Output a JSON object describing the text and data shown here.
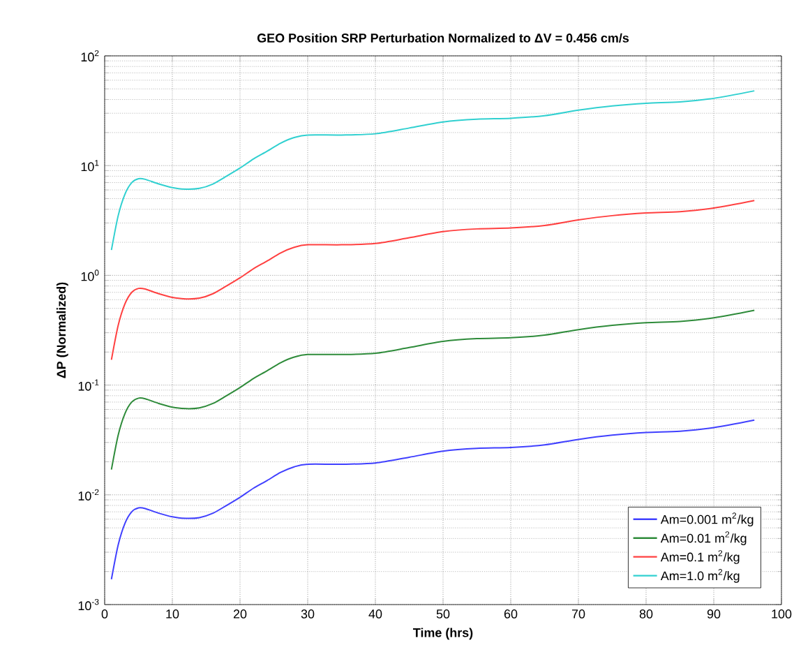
{
  "chart_data": {
    "type": "line",
    "title": "GEO Position SRP Perturbation Normalized to ΔV = 0.456 cm/s",
    "xlabel": "Time (hrs)",
    "ylabel": "ΔP (Normalized)",
    "x": [
      1,
      2,
      3,
      4,
      5,
      6,
      8,
      10,
      12,
      14,
      16,
      18,
      20,
      22,
      24,
      26,
      28,
      30,
      35,
      40,
      45,
      50,
      55,
      60,
      65,
      70,
      75,
      80,
      85,
      90,
      96
    ],
    "series": [
      {
        "name": "Am=0.001 m$^{2}$/kg",
        "color": "#4040ff",
        "values": [
          0.0017,
          0.0035,
          0.0055,
          0.007,
          0.0076,
          0.0075,
          0.0068,
          0.0063,
          0.0061,
          0.0062,
          0.0068,
          0.008,
          0.0095,
          0.0115,
          0.0135,
          0.016,
          0.018,
          0.019,
          0.019,
          0.0195,
          0.022,
          0.025,
          0.0265,
          0.027,
          0.0285,
          0.032,
          0.035,
          0.037,
          0.038,
          0.041,
          0.048
        ]
      },
      {
        "name": "Am=0.01 m$^{2}$/kg",
        "color": "#2e8b3a",
        "values": [
          0.017,
          0.035,
          0.055,
          0.07,
          0.076,
          0.075,
          0.068,
          0.063,
          0.061,
          0.062,
          0.068,
          0.08,
          0.095,
          0.115,
          0.135,
          0.16,
          0.18,
          0.19,
          0.19,
          0.195,
          0.22,
          0.25,
          0.265,
          0.27,
          0.285,
          0.32,
          0.35,
          0.37,
          0.38,
          0.41,
          0.48
        ]
      },
      {
        "name": "Am=0.1 m$^{2}$/kg",
        "color": "#ff4040",
        "values": [
          0.17,
          0.35,
          0.55,
          0.7,
          0.76,
          0.75,
          0.68,
          0.63,
          0.61,
          0.62,
          0.68,
          0.8,
          0.95,
          1.15,
          1.35,
          1.6,
          1.8,
          1.9,
          1.9,
          1.95,
          2.2,
          2.5,
          2.65,
          2.7,
          2.85,
          3.2,
          3.5,
          3.7,
          3.8,
          4.1,
          4.8
        ]
      },
      {
        "name": "Am=1.0 m$^{2}$/kg",
        "color": "#30d0d0",
        "values": [
          1.7,
          3.5,
          5.5,
          7,
          7.6,
          7.5,
          6.8,
          6.3,
          6.1,
          6.2,
          6.8,
          8,
          9.5,
          11.5,
          13.5,
          16,
          18,
          19,
          19,
          19.5,
          22,
          25,
          26.5,
          27,
          28.5,
          32,
          35,
          37,
          38,
          41,
          48
        ]
      }
    ],
    "xlim": [
      0,
      100
    ],
    "xticks": [
      0,
      10,
      20,
      30,
      40,
      50,
      60,
      70,
      80,
      90,
      100
    ],
    "ylim": [
      0.001,
      100
    ],
    "yticks": [
      {
        "value": 0.001,
        "label": "10$^{-3}$"
      },
      {
        "value": 0.01,
        "label": "10$^{-2}$"
      },
      {
        "value": 0.1,
        "label": "10$^{-1}$"
      },
      {
        "value": 1,
        "label": "10$^{0}$"
      },
      {
        "value": 10,
        "label": "10$^{1}$"
      },
      {
        "value": 100,
        "label": "10$^{2}$"
      }
    ],
    "log": "y",
    "grid": true,
    "legend": "bottom right",
    "line_style": "solid",
    "marker": "none"
  }
}
